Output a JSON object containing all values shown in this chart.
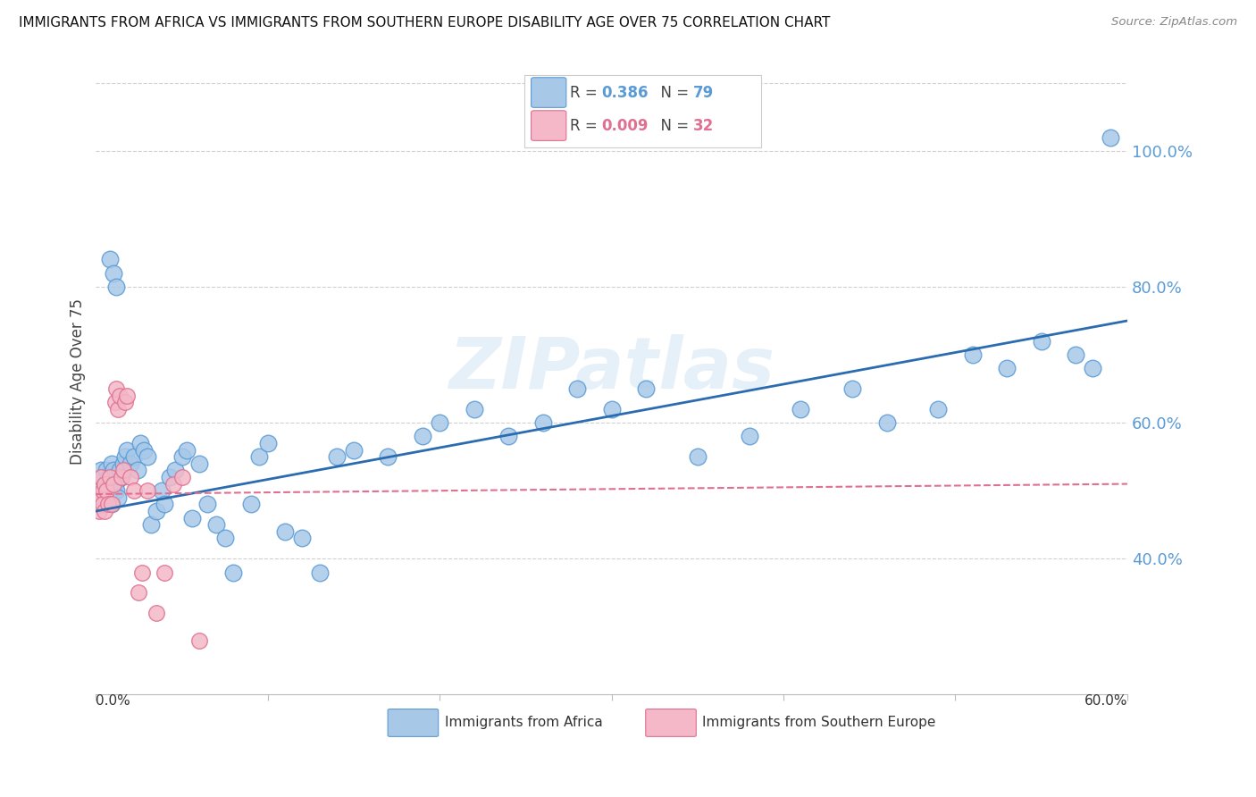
{
  "title": "IMMIGRANTS FROM AFRICA VS IMMIGRANTS FROM SOUTHERN EUROPE DISABILITY AGE OVER 75 CORRELATION CHART",
  "source": "Source: ZipAtlas.com",
  "ylabel": "Disability Age Over 75",
  "legend_label1": "Immigrants from Africa",
  "legend_label2": "Immigrants from Southern Europe",
  "africa_color": "#a8c8e8",
  "africa_edge": "#5b9bd5",
  "south_europe_color": "#f4b8c8",
  "south_europe_edge": "#e07090",
  "africa_trend_color": "#2b6cb0",
  "south_europe_trend_color": "#e07090",
  "right_ytick_values": [
    0.4,
    0.6,
    0.8,
    1.0
  ],
  "right_yticklabels": [
    "40.0%",
    "60.0%",
    "80.0%",
    "100.0%"
  ],
  "xlim": [
    0.0,
    0.6
  ],
  "ylim": [
    0.2,
    1.12
  ],
  "watermark": "ZIPatlas",
  "africa_x": [
    0.001,
    0.002,
    0.002,
    0.003,
    0.003,
    0.004,
    0.004,
    0.005,
    0.005,
    0.006,
    0.006,
    0.007,
    0.007,
    0.008,
    0.008,
    0.009,
    0.009,
    0.01,
    0.01,
    0.011,
    0.012,
    0.013,
    0.014,
    0.015,
    0.016,
    0.017,
    0.018,
    0.02,
    0.022,
    0.024,
    0.026,
    0.028,
    0.03,
    0.032,
    0.035,
    0.038,
    0.04,
    0.043,
    0.046,
    0.05,
    0.053,
    0.056,
    0.06,
    0.065,
    0.07,
    0.075,
    0.08,
    0.09,
    0.095,
    0.1,
    0.11,
    0.12,
    0.13,
    0.14,
    0.15,
    0.17,
    0.19,
    0.2,
    0.22,
    0.24,
    0.26,
    0.28,
    0.3,
    0.32,
    0.35,
    0.38,
    0.41,
    0.44,
    0.46,
    0.49,
    0.51,
    0.53,
    0.55,
    0.57,
    0.58,
    0.59,
    0.008,
    0.01,
    0.012
  ],
  "africa_y": [
    0.5,
    0.51,
    0.48,
    0.53,
    0.49,
    0.52,
    0.5,
    0.48,
    0.51,
    0.5,
    0.53,
    0.49,
    0.52,
    0.51,
    0.5,
    0.54,
    0.48,
    0.52,
    0.53,
    0.51,
    0.5,
    0.49,
    0.53,
    0.52,
    0.54,
    0.55,
    0.56,
    0.54,
    0.55,
    0.53,
    0.57,
    0.56,
    0.55,
    0.45,
    0.47,
    0.5,
    0.48,
    0.52,
    0.53,
    0.55,
    0.56,
    0.46,
    0.54,
    0.48,
    0.45,
    0.43,
    0.38,
    0.48,
    0.55,
    0.57,
    0.44,
    0.43,
    0.38,
    0.55,
    0.56,
    0.55,
    0.58,
    0.6,
    0.62,
    0.58,
    0.6,
    0.65,
    0.62,
    0.65,
    0.55,
    0.58,
    0.62,
    0.65,
    0.6,
    0.62,
    0.7,
    0.68,
    0.72,
    0.7,
    0.68,
    1.02,
    0.84,
    0.82,
    0.8
  ],
  "south_europe_x": [
    0.001,
    0.002,
    0.002,
    0.003,
    0.003,
    0.004,
    0.004,
    0.005,
    0.005,
    0.006,
    0.007,
    0.008,
    0.009,
    0.01,
    0.011,
    0.012,
    0.013,
    0.014,
    0.015,
    0.016,
    0.017,
    0.018,
    0.02,
    0.022,
    0.025,
    0.027,
    0.03,
    0.035,
    0.04,
    0.045,
    0.05,
    0.06
  ],
  "south_europe_y": [
    0.48,
    0.5,
    0.47,
    0.49,
    0.52,
    0.5,
    0.48,
    0.51,
    0.47,
    0.5,
    0.48,
    0.52,
    0.48,
    0.51,
    0.63,
    0.65,
    0.62,
    0.64,
    0.52,
    0.53,
    0.63,
    0.64,
    0.52,
    0.5,
    0.35,
    0.38,
    0.5,
    0.32,
    0.38,
    0.51,
    0.52,
    0.28
  ]
}
